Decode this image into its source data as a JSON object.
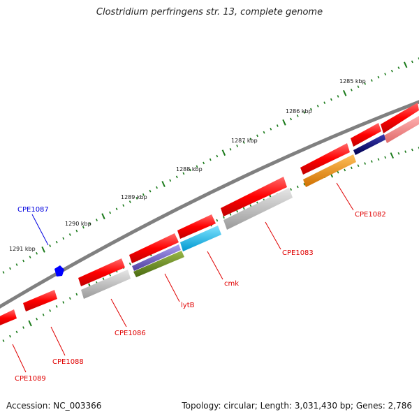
{
  "title": "Clostridium perfringens str. 13, complete genome",
  "footer": {
    "accession": "Accession: NC_003366",
    "summary": "Topology: circular; Length: 3,031,430 bp; Genes: 2,786"
  },
  "colors": {
    "backbone": "#808080",
    "tick": "#1a7a1a",
    "label_line": "#e00000",
    "highlight_line": "#0000e0"
  },
  "kbp_ticks": [
    {
      "label": "1285 kbp"
    },
    {
      "label": "1286 kbp"
    },
    {
      "label": "1287 kbp"
    },
    {
      "label": "1288 kbp"
    },
    {
      "label": "1289 kbp"
    },
    {
      "label": "1290 kbp"
    },
    {
      "label": "1291 kbp"
    }
  ],
  "genes": [
    {
      "label": "CPE1082",
      "label_color": "#e00000"
    },
    {
      "label": "CPE1083",
      "label_color": "#e00000"
    },
    {
      "label": "cmk",
      "label_color": "#e00000"
    },
    {
      "label": "lytB",
      "label_color": "#e00000"
    },
    {
      "label": "CPE1086",
      "label_color": "#e00000"
    },
    {
      "label": "CPE1088",
      "label_color": "#e00000"
    },
    {
      "label": "CPE1089",
      "label_color": "#e00000"
    },
    {
      "label": "CPE1087",
      "label_color": "#0000e0"
    }
  ],
  "feature_colors": [
    "#ff0000",
    "#c0c0c0",
    "#00b0f0",
    "#7060c0",
    "#6b8e23",
    "#ff8c00",
    "#000080",
    "#f08080",
    "#0000ff"
  ]
}
